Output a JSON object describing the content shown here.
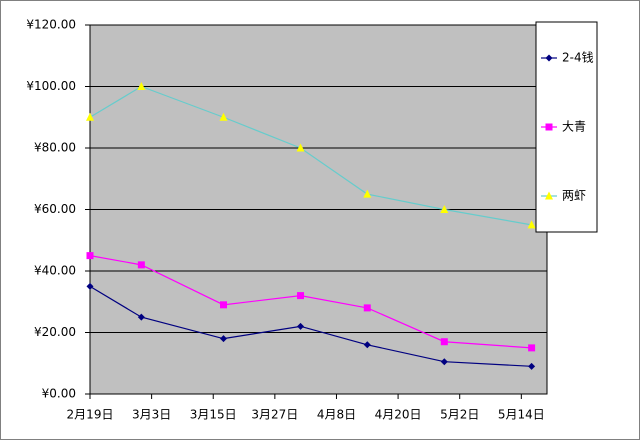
{
  "chart_data": {
    "type": "line",
    "x": [
      "2月19日",
      "3月1日",
      "3月17日",
      "4月1日",
      "4月14日",
      "4月29日",
      "5月16日"
    ],
    "xlim": [
      "2月19日",
      "5月19日"
    ],
    "xticks": [
      "2月19日",
      "3月3日",
      "3月15日",
      "3月27日",
      "4月8日",
      "4月20日",
      "5月2日",
      "5月14日"
    ],
    "ylim": [
      0,
      120
    ],
    "yticks": [
      {
        "value": 0,
        "label": "¥0.00"
      },
      {
        "value": 20,
        "label": "¥20.00"
      },
      {
        "value": 40,
        "label": "¥40.00"
      },
      {
        "value": 60,
        "label": "¥60.00"
      },
      {
        "value": 80,
        "label": "¥80.00"
      },
      {
        "value": 100,
        "label": "¥100.00"
      },
      {
        "value": 120,
        "label": "¥120.00"
      }
    ],
    "grid": true,
    "legend": "right",
    "series": [
      {
        "name": "2-4钱",
        "color": "#000080",
        "marker_color": "#000080",
        "marker": "diamond",
        "values": [
          35,
          25,
          18,
          22,
          16,
          10.5,
          9
        ]
      },
      {
        "name": "大青",
        "color": "#ff00ff",
        "marker_color": "#ff00ff",
        "marker": "square",
        "values": [
          45,
          42,
          29,
          32,
          28,
          17,
          15
        ]
      },
      {
        "name": "两虾",
        "color": "#66cccc",
        "marker_color": "#ffff00",
        "marker": "triangle",
        "values": [
          90,
          100,
          90,
          80,
          65,
          60,
          55
        ]
      }
    ]
  }
}
